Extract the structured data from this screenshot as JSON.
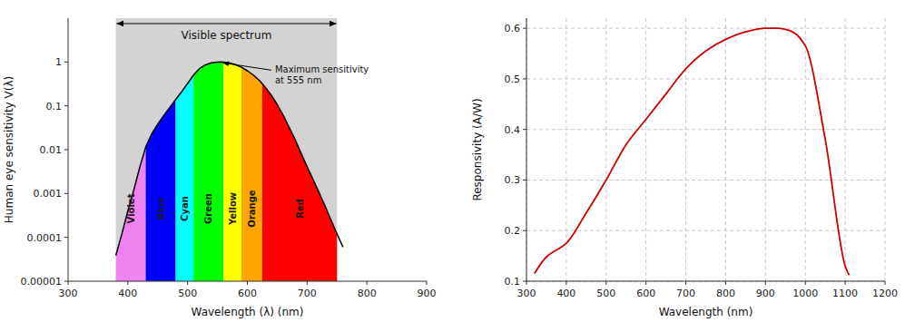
{
  "chart_data": [
    {
      "type": "line",
      "xlabel": "Wavelength (λ) (nm)",
      "ylabel": "Human eye sensitivity V(λ)",
      "log": "y",
      "xlim": [
        300,
        900
      ],
      "ylim": [
        1e-05,
        10
      ],
      "xticks": [
        300,
        400,
        500,
        600,
        700,
        800,
        900
      ],
      "yticks": [
        1e-05,
        0.0001,
        0.001,
        0.01,
        0.1,
        1
      ],
      "color": "#000000",
      "x": [
        380,
        390,
        400,
        410,
        420,
        430,
        440,
        450,
        460,
        470,
        480,
        490,
        500,
        510,
        520,
        530,
        540,
        550,
        555,
        560,
        570,
        580,
        590,
        600,
        610,
        620,
        630,
        640,
        650,
        660,
        670,
        680,
        690,
        700,
        710,
        720,
        730,
        740,
        750,
        760
      ],
      "values": [
        3.9e-05,
        0.00012,
        0.000396,
        0.00121,
        0.004,
        0.0116,
        0.023,
        0.038,
        0.06,
        0.09098,
        0.13902,
        0.20802,
        0.323,
        0.503,
        0.71,
        0.862,
        0.954,
        0.99495,
        1.0,
        0.995,
        0.952,
        0.87,
        0.757,
        0.631,
        0.503,
        0.381,
        0.265,
        0.175,
        0.107,
        0.061,
        0.032,
        0.017,
        0.00821,
        0.004102,
        0.002091,
        0.001047,
        0.00052,
        0.000249,
        0.00012,
        6e-05
      ],
      "span": {
        "label": "Visible spectrum",
        "start": 380,
        "end": 750,
        "color": "#d3d3d3"
      },
      "bands": [
        {
          "name": "Violet",
          "start": 380,
          "end": 430,
          "color": "#EE82EE"
        },
        {
          "name": "Blue",
          "start": 430,
          "end": 480,
          "color": "#0000FF"
        },
        {
          "name": "Cyan",
          "start": 480,
          "end": 510,
          "color": "#00FFFF"
        },
        {
          "name": "Green",
          "start": 510,
          "end": 560,
          "color": "#00FF00"
        },
        {
          "name": "Yellow",
          "start": 560,
          "end": 590,
          "color": "#FFFF00"
        },
        {
          "name": "Orange",
          "start": 590,
          "end": 625,
          "color": "#FFA500"
        },
        {
          "name": "Red",
          "start": 625,
          "end": 750,
          "color": "#FF0000"
        }
      ],
      "annotations": [
        {
          "text": "Maximum sensitivity\nat 555 nm",
          "x": 555,
          "y": 1.0
        }
      ],
      "grid": false
    },
    {
      "type": "line",
      "xlabel": "Wavelength (nm)",
      "ylabel": "Responsivity (A/W)",
      "xlim": [
        300,
        1200
      ],
      "ylim": [
        0.1,
        0.62
      ],
      "xticks": [
        300,
        400,
        500,
        600,
        700,
        800,
        900,
        1000,
        1100,
        1200
      ],
      "yticks": [
        0.1,
        0.2,
        0.3,
        0.4,
        0.5,
        0.6
      ],
      "color": "#CC0000",
      "x": [
        320,
        350,
        400,
        450,
        500,
        550,
        600,
        650,
        700,
        750,
        800,
        850,
        900,
        930,
        950,
        970,
        1000,
        1050,
        1100,
        1110
      ],
      "values": [
        0.115,
        0.148,
        0.175,
        0.235,
        0.3,
        0.37,
        0.42,
        0.47,
        0.52,
        0.555,
        0.578,
        0.593,
        0.6,
        0.6,
        0.598,
        0.592,
        0.565,
        0.38,
        0.13,
        0.112
      ],
      "grid": true
    }
  ]
}
